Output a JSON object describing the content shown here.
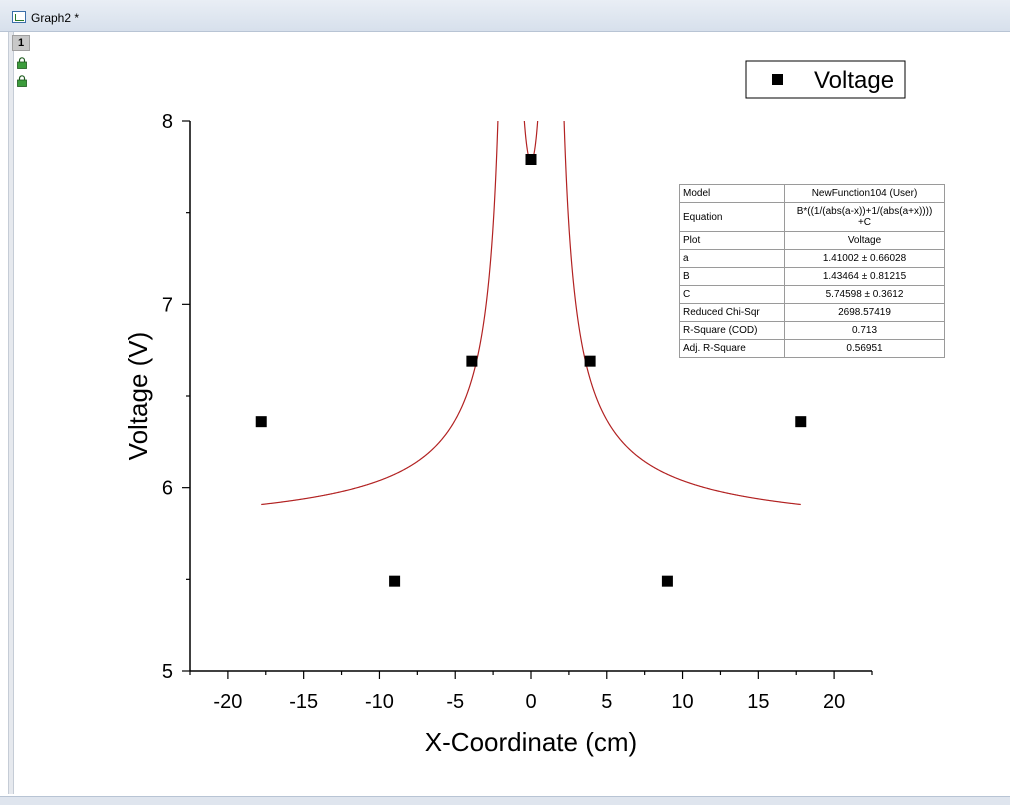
{
  "window": {
    "title": "Graph2 *",
    "layer_tab": "1",
    "icons": [
      "graph-window-icon",
      "lock-icon",
      "lock-icon"
    ]
  },
  "legend": {
    "label": "Voltage",
    "symbol": "filled-square"
  },
  "fit_table": {
    "rows": [
      {
        "key": "Model",
        "value": "NewFunction104 (User)"
      },
      {
        "key": "Equation",
        "value": "B*((1/(abs(a-x))+1/(abs(a+x))))",
        "value2": "+C"
      },
      {
        "key": "Plot",
        "value": "Voltage"
      },
      {
        "key": "a",
        "value": "1.41002 ± 0.66028"
      },
      {
        "key": "B",
        "value": "1.43464 ± 0.81215"
      },
      {
        "key": "C",
        "value": "5.74598 ± 0.3612"
      },
      {
        "key": "Reduced Chi-Sqr",
        "value": "2698.57419"
      },
      {
        "key": "R-Square (COD)",
        "value": "0.713"
      },
      {
        "key": "Adj. R-Square",
        "value": "0.56951"
      }
    ]
  },
  "chart_data": {
    "type": "scatter",
    "xlabel": "X-Coordinate (cm)",
    "ylabel": "Voltage (V)",
    "xlim": [
      -22.5,
      22.5
    ],
    "ylim": [
      5,
      8
    ],
    "x_ticks": [
      -20,
      -15,
      -10,
      -5,
      0,
      5,
      10,
      15,
      20
    ],
    "y_ticks": [
      5,
      6,
      7,
      8
    ],
    "grid": false,
    "legend_position": "top-right",
    "series": [
      {
        "name": "Voltage",
        "marker": "square",
        "color": "#000000",
        "x": [
          -17.8,
          -9.0,
          -3.9,
          0,
          3.9,
          9.0,
          17.8
        ],
        "y": [
          6.36,
          5.49,
          6.69,
          7.79,
          6.69,
          5.49,
          6.36
        ]
      }
    ],
    "fit_curve": {
      "color": "#b22222",
      "params": {
        "a": 1.41002,
        "B": 1.43464,
        "C": 5.74598
      },
      "x_range": [
        -17.8,
        17.8
      ]
    }
  }
}
